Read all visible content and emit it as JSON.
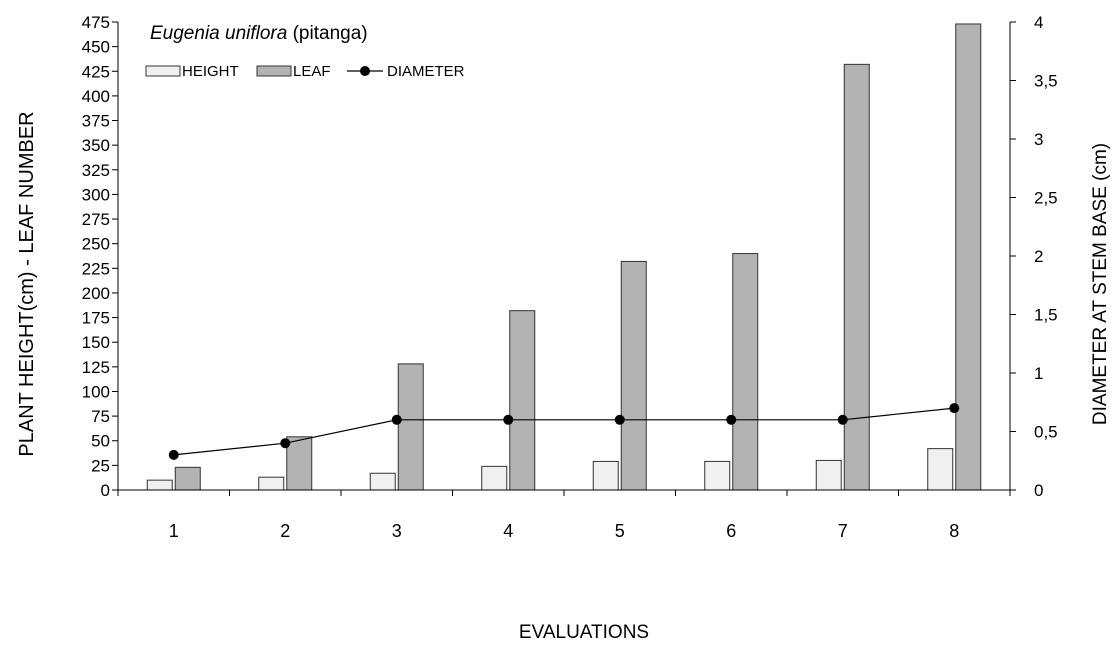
{
  "chart_data": {
    "type": "bar",
    "title": {
      "species": "Eugenia uniflora",
      "common_name": "(pitanga)"
    },
    "xlabel": "EVALUATIONS",
    "ylabel_left": "PLANT HEIGHT(cm) - LEAF NUMBER",
    "ylabel_right": "DIAMETER AT STEM BASE (cm)",
    "categories": [
      "1",
      "2",
      "3",
      "4",
      "5",
      "6",
      "7",
      "8"
    ],
    "ylim_left": [
      0,
      475
    ],
    "ylim_right": [
      0,
      4
    ],
    "yticks_left": [
      "0",
      "25",
      "50",
      "75",
      "100",
      "125",
      "150",
      "175",
      "200",
      "225",
      "250",
      "275",
      "300",
      "325",
      "350",
      "375",
      "400",
      "425",
      "450",
      "475"
    ],
    "yticks_right": [
      "0",
      "0,5",
      "1",
      "1,5",
      "2",
      "2,5",
      "3",
      "3,5",
      "4"
    ],
    "grid": false,
    "legend_position": "top-left",
    "series": [
      {
        "name": "HEIGHT",
        "kind": "bar",
        "axis": "left",
        "color": "#f0f0f0",
        "values": [
          10,
          13,
          17,
          24,
          29,
          29,
          30,
          42
        ]
      },
      {
        "name": "LEAF",
        "kind": "bar",
        "axis": "left",
        "color": "#b3b3b3",
        "values": [
          23,
          54,
          128,
          182,
          232,
          240,
          432,
          473
        ]
      },
      {
        "name": "DIAMETER",
        "kind": "line",
        "axis": "right",
        "color": "#000000",
        "values": [
          0.3,
          0.4,
          0.6,
          0.6,
          0.6,
          0.6,
          0.6,
          0.7
        ]
      }
    ]
  }
}
